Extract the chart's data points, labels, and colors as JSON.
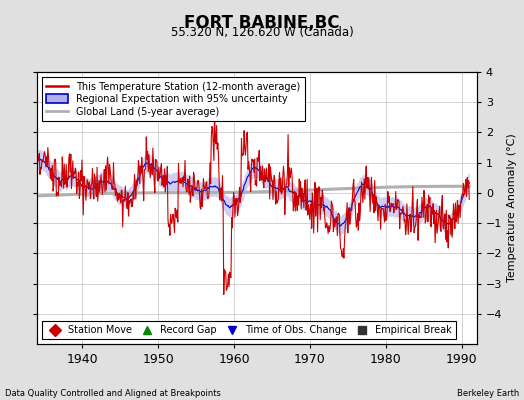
{
  "title": "FORT BABINE,BC",
  "subtitle": "55.320 N, 126.620 W (Canada)",
  "xlabel_left": "Data Quality Controlled and Aligned at Breakpoints",
  "xlabel_right": "Berkeley Earth",
  "ylabel": "Temperature Anomaly (°C)",
  "xlim": [
    1934,
    1992
  ],
  "ylim": [
    -5,
    4
  ],
  "yticks": [
    -4,
    -3,
    -2,
    -1,
    0,
    1,
    2,
    3,
    4
  ],
  "xticks": [
    1940,
    1950,
    1960,
    1970,
    1980,
    1990
  ],
  "background_color": "#e0e0e0",
  "plot_bg_color": "#ffffff",
  "grid_color": "#c0c0c0",
  "red_color": "#cc0000",
  "blue_color": "#0000cc",
  "blue_fill_color": "#b0b0ee",
  "gray_color": "#b0b0b0",
  "legend1_labels": [
    "This Temperature Station (12-month average)",
    "Regional Expectation with 95% uncertainty",
    "Global Land (5-year average)"
  ],
  "legend2_labels": [
    "Station Move",
    "Record Gap",
    "Time of Obs. Change",
    "Empirical Break"
  ],
  "legend2_colors": [
    "#cc0000",
    "#008800",
    "#0000cc",
    "#333333"
  ],
  "legend2_markers": [
    "D",
    "^",
    "v",
    "s"
  ]
}
